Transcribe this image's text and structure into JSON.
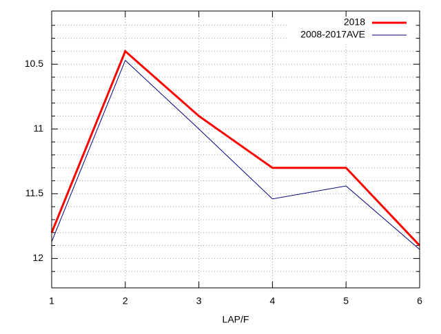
{
  "chart_data": {
    "type": "line",
    "xlabel": "LAP/F",
    "x": [
      1,
      2,
      3,
      4,
      5,
      6
    ],
    "series": [
      {
        "name": "2018",
        "color": "#ff0000",
        "width": 3,
        "values": [
          11.8,
          10.4,
          10.9,
          11.3,
          11.3,
          11.9
        ]
      },
      {
        "name": "2008-2017AVE",
        "color": "#000080",
        "width": 1,
        "values": [
          11.87,
          10.47,
          11.0,
          11.54,
          11.44,
          11.93
        ]
      }
    ],
    "xlim": [
      1,
      6
    ],
    "xticks": [
      1,
      2,
      3,
      4,
      5,
      6
    ],
    "ylim": [
      10.1,
      12.2
    ],
    "yreverse": true,
    "yticks": [
      10.5,
      11,
      11.5,
      12
    ],
    "yminorticks": [
      10.2,
      10.3,
      10.4,
      10.6,
      10.7,
      10.8,
      10.9,
      11.1,
      11.2,
      11.3,
      11.4,
      11.6,
      11.7,
      11.8,
      11.9,
      12.1
    ],
    "grid": true,
    "legend": "top-right"
  }
}
